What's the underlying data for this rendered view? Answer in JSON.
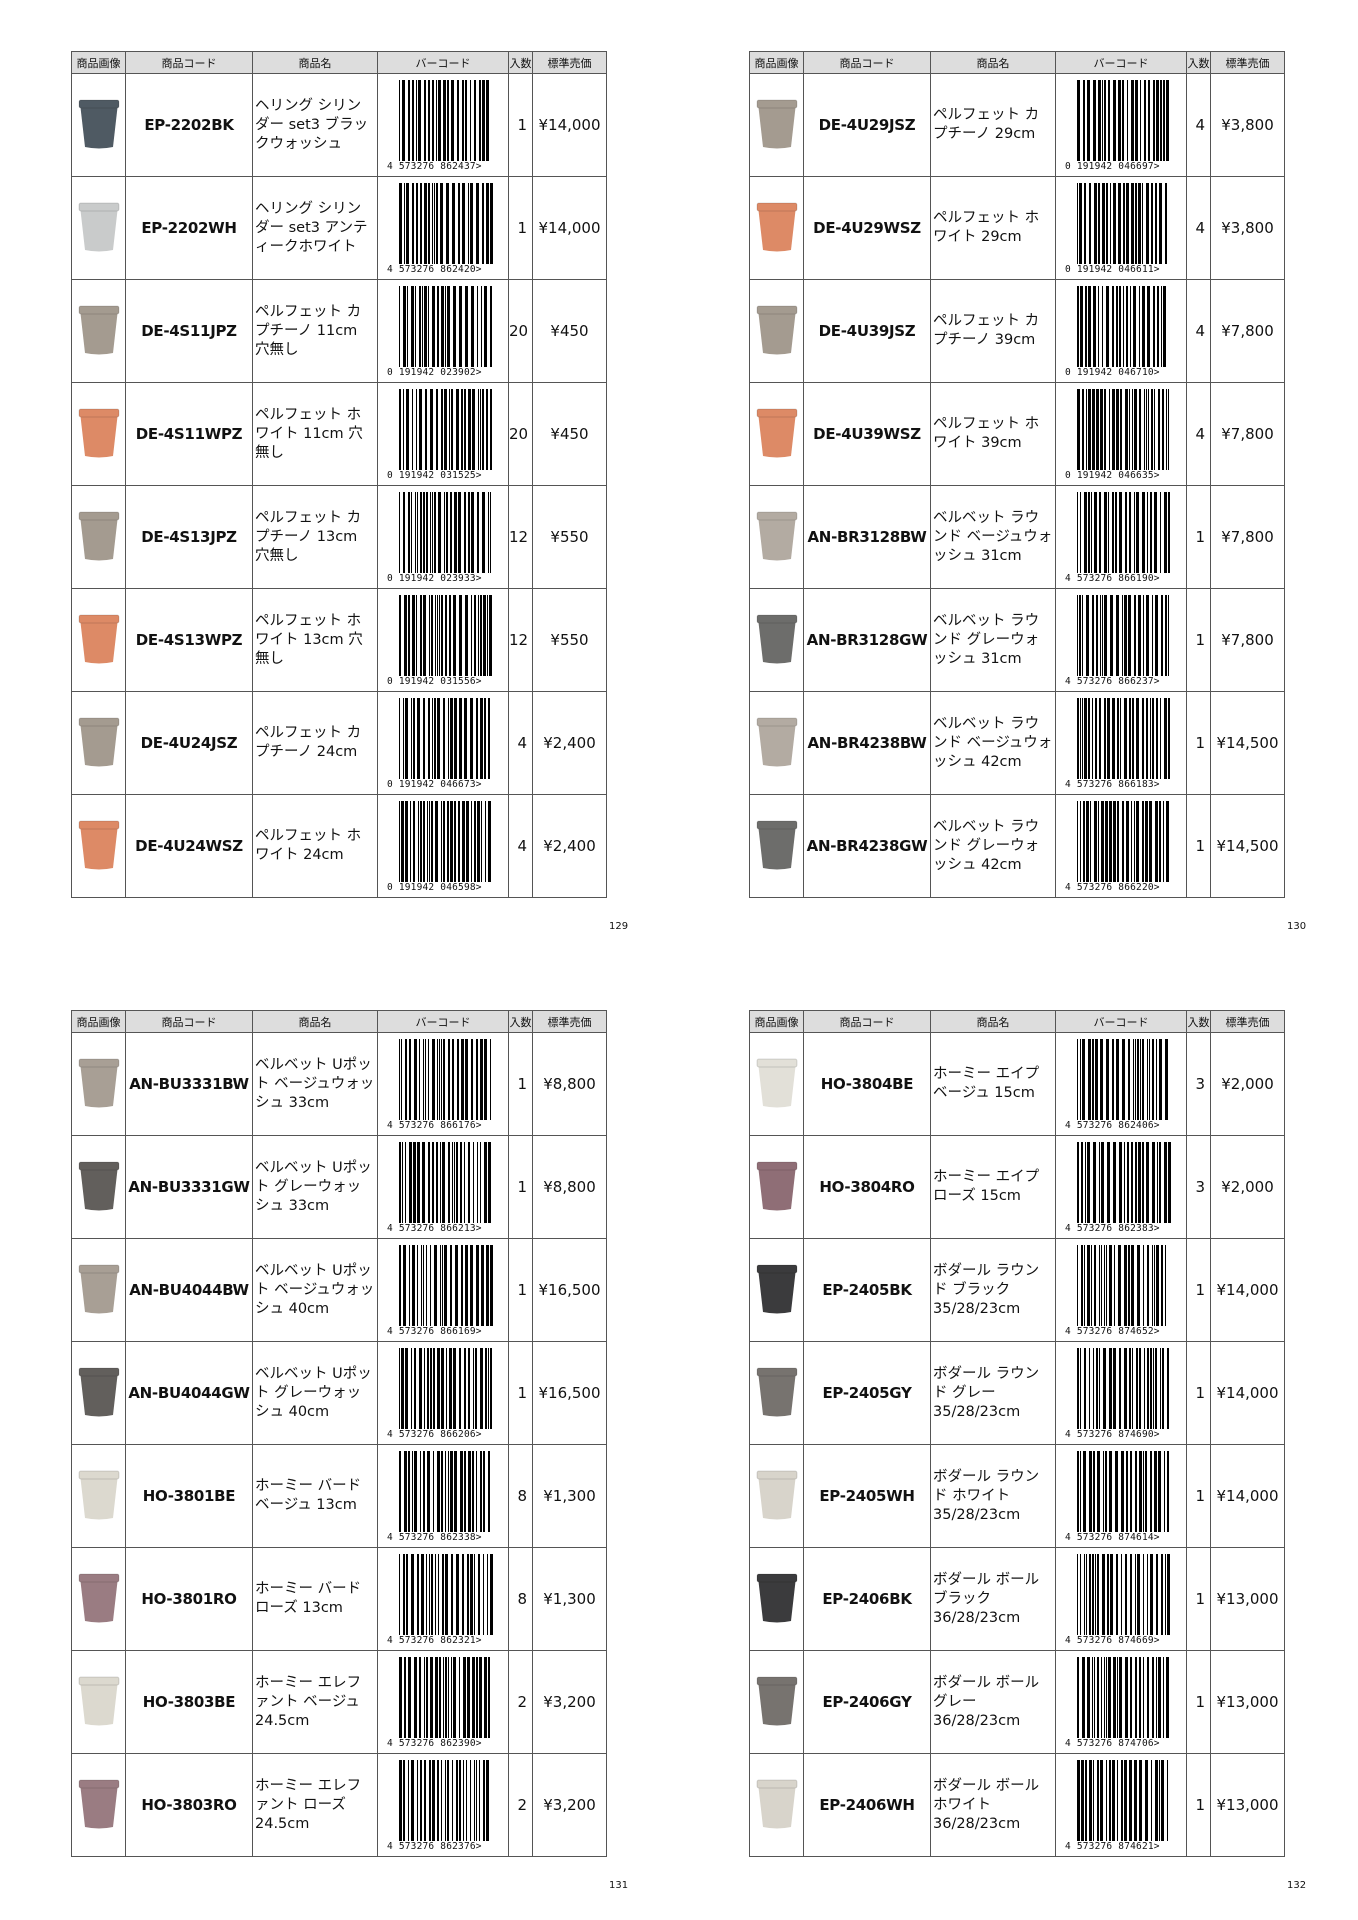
{
  "pages": [
    {
      "page_number": "129",
      "headers": [
        "商品画像",
        "商品コード",
        "商品名",
        "バーコード",
        "入数",
        "標準売価"
      ],
      "rows": [
        {
          "code": "EP-2202BK",
          "name": "ヘリング シリンダー set3 ブラックウォッシュ",
          "barcode": "4 573276 862437>",
          "quantity": 1,
          "price": "¥14,000",
          "color": "#4f5a63"
        },
        {
          "code": "EP-2202WH",
          "name": "ヘリング シリンダー set3 アンティークホワイト",
          "barcode": "4 573276 862420>",
          "quantity": 1,
          "price": "¥14,000",
          "color": "#c9cbcb"
        },
        {
          "code": "DE-4S11JPZ",
          "name": "ペルフェット カプチーノ 11cm 穴無し",
          "barcode": "0 191942 023902>",
          "quantity": 20,
          "price": "¥450",
          "color": "#a49b90"
        },
        {
          "code": "DE-4S11WPZ",
          "name": "ペルフェット ホワイト 11cm 穴無し",
          "barcode": "0 191942 031525>",
          "quantity": 20,
          "price": "¥450",
          "color": "#dd8a66"
        },
        {
          "code": "DE-4S13JPZ",
          "name": "ペルフェット カプチーノ 13cm 穴無し",
          "barcode": "0 191942 023933>",
          "quantity": 12,
          "price": "¥550",
          "color": "#a49b90"
        },
        {
          "code": "DE-4S13WPZ",
          "name": "ペルフェット ホワイト 13cm 穴無し",
          "barcode": "0 191942 031556>",
          "quantity": 12,
          "price": "¥550",
          "color": "#dd8a66"
        },
        {
          "code": "DE-4U24JSZ",
          "name": "ペルフェット カプチーノ 24cm",
          "barcode": "0 191942 046673>",
          "quantity": 4,
          "price": "¥2,400",
          "color": "#a49b90"
        },
        {
          "code": "DE-4U24WSZ",
          "name": "ペルフェット ホワイト 24cm",
          "barcode": "0 191942 046598>",
          "quantity": 4,
          "price": "¥2,400",
          "color": "#dd8a66"
        }
      ]
    },
    {
      "page_number": "130",
      "headers": [
        "商品画像",
        "商品コード",
        "商品名",
        "バーコード",
        "入数",
        "標準売価"
      ],
      "rows": [
        {
          "code": "DE-4U29JSZ",
          "name": "ペルフェット カプチーノ 29cm",
          "barcode": "0 191942 046697>",
          "quantity": 4,
          "price": "¥3,800",
          "color": "#a49b90"
        },
        {
          "code": "DE-4U29WSZ",
          "name": "ペルフェット ホワイト 29cm",
          "barcode": "0 191942 046611>",
          "quantity": 4,
          "price": "¥3,800",
          "color": "#dd8a66"
        },
        {
          "code": "DE-4U39JSZ",
          "name": "ペルフェット カプチーノ 39cm",
          "barcode": "0 191942 046710>",
          "quantity": 4,
          "price": "¥7,800",
          "color": "#a49b90"
        },
        {
          "code": "DE-4U39WSZ",
          "name": "ペルフェット ホワイト 39cm",
          "barcode": "0 191942 046635>",
          "quantity": 4,
          "price": "¥7,800",
          "color": "#dd8a66"
        },
        {
          "code": "AN-BR3128BW",
          "name": "ベルベット ラウンド ベージュウォッシュ 31cm",
          "barcode": "4 573276 866190>",
          "quantity": 1,
          "price": "¥7,800",
          "color": "#b3aba2"
        },
        {
          "code": "AN-BR3128GW",
          "name": "ベルベット ラウンド グレーウォッシュ 31cm",
          "barcode": "4 573276 866237>",
          "quantity": 1,
          "price": "¥7,800",
          "color": "#6d6d6b"
        },
        {
          "code": "AN-BR4238BW",
          "name": "ベルベット ラウンド ベージュウォッシュ 42cm",
          "barcode": "4 573276 866183>",
          "quantity": 1,
          "price": "¥14,500",
          "color": "#b3aba2"
        },
        {
          "code": "AN-BR4238GW",
          "name": "ベルベット ラウンド グレーウォッシュ 42cm",
          "barcode": "4 573276 866220>",
          "quantity": 1,
          "price": "¥14,500",
          "color": "#6d6d6b"
        }
      ]
    },
    {
      "page_number": "131",
      "headers": [
        "商品画像",
        "商品コード",
        "商品名",
        "バーコード",
        "入数",
        "標準売価"
      ],
      "rows": [
        {
          "code": "AN-BU3331BW",
          "name": "ベルベット Uポット ベージュウォッシュ 33cm",
          "barcode": "4 573276 866176>",
          "quantity": 1,
          "price": "¥8,800",
          "color": "#a89f95"
        },
        {
          "code": "AN-BU3331GW",
          "name": "ベルベット Uポット グレーウォッシュ 33cm",
          "barcode": "4 573276 866213>",
          "quantity": 1,
          "price": "¥8,800",
          "color": "#625f5c"
        },
        {
          "code": "AN-BU4044BW",
          "name": "ベルベット Uポット ベージュウォッシュ 40cm",
          "barcode": "4 573276 866169>",
          "quantity": 1,
          "price": "¥16,500",
          "color": "#a89f95"
        },
        {
          "code": "AN-BU4044GW",
          "name": "ベルベット Uポット グレーウォッシュ 40cm",
          "barcode": "4 573276 866206>",
          "quantity": 1,
          "price": "¥16,500",
          "color": "#625f5c"
        },
        {
          "code": "HO-3801BE",
          "name": "ホーミー バード ベージュ 13cm",
          "barcode": "4 573276 862338>",
          "quantity": 8,
          "price": "¥1,300",
          "color": "#dcd9cf"
        },
        {
          "code": "HO-3801RO",
          "name": "ホーミー バード ローズ 13cm",
          "barcode": "4 573276 862321>",
          "quantity": 8,
          "price": "¥1,300",
          "color": "#9a7c82"
        },
        {
          "code": "HO-3803BE",
          "name": "ホーミー エレファント ベージュ 24.5cm",
          "barcode": "4 573276 862390>",
          "quantity": 2,
          "price": "¥3,200",
          "color": "#dcd9cf"
        },
        {
          "code": "HO-3803RO",
          "name": "ホーミー エレファント ローズ 24.5cm",
          "barcode": "4 573276 862376>",
          "quantity": 2,
          "price": "¥3,200",
          "color": "#9a7c82"
        }
      ]
    },
    {
      "page_number": "132",
      "headers": [
        "商品画像",
        "商品コード",
        "商品名",
        "バーコード",
        "入数",
        "標準売価"
      ],
      "rows": [
        {
          "code": "HO-3804BE",
          "name": "ホーミー エイプ ベージュ 15cm",
          "barcode": "4 573276 862406>",
          "quantity": 3,
          "price": "¥2,000",
          "color": "#e2e0d8"
        },
        {
          "code": "HO-3804RO",
          "name": "ホーミー エイプ ローズ 15cm",
          "barcode": "4 573276 862383>",
          "quantity": 3,
          "price": "¥2,000",
          "color": "#8f6e76"
        },
        {
          "code": "EP-2405BK",
          "name": "ボダール ラウンド ブラック 35/28/23cm",
          "barcode": "4 573276 874652>",
          "quantity": 1,
          "price": "¥14,000",
          "color": "#3b3b3d"
        },
        {
          "code": "EP-2405GY",
          "name": "ボダール ラウンド グレー 35/28/23cm",
          "barcode": "4 573276 874690>",
          "quantity": 1,
          "price": "¥14,000",
          "color": "#77736f"
        },
        {
          "code": "EP-2405WH",
          "name": "ボダール ラウンド ホワイト 35/28/23cm",
          "barcode": "4 573276 874614>",
          "quantity": 1,
          "price": "¥14,000",
          "color": "#d8d4cb"
        },
        {
          "code": "EP-2406BK",
          "name": "ボダール ボール ブラック 36/28/23cm",
          "barcode": "4 573276 874669>",
          "quantity": 1,
          "price": "¥13,000",
          "color": "#3b3b3d"
        },
        {
          "code": "EP-2406GY",
          "name": "ボダール ボール グレー 36/28/23cm",
          "barcode": "4 573276 874706>",
          "quantity": 1,
          "price": "¥13,000",
          "color": "#77736f"
        },
        {
          "code": "EP-2406WH",
          "name": "ボダール ボール ホワイト 36/28/23cm",
          "barcode": "4 573276 874621>",
          "quantity": 1,
          "price": "¥13,000",
          "color": "#d8d4cb"
        }
      ]
    }
  ]
}
